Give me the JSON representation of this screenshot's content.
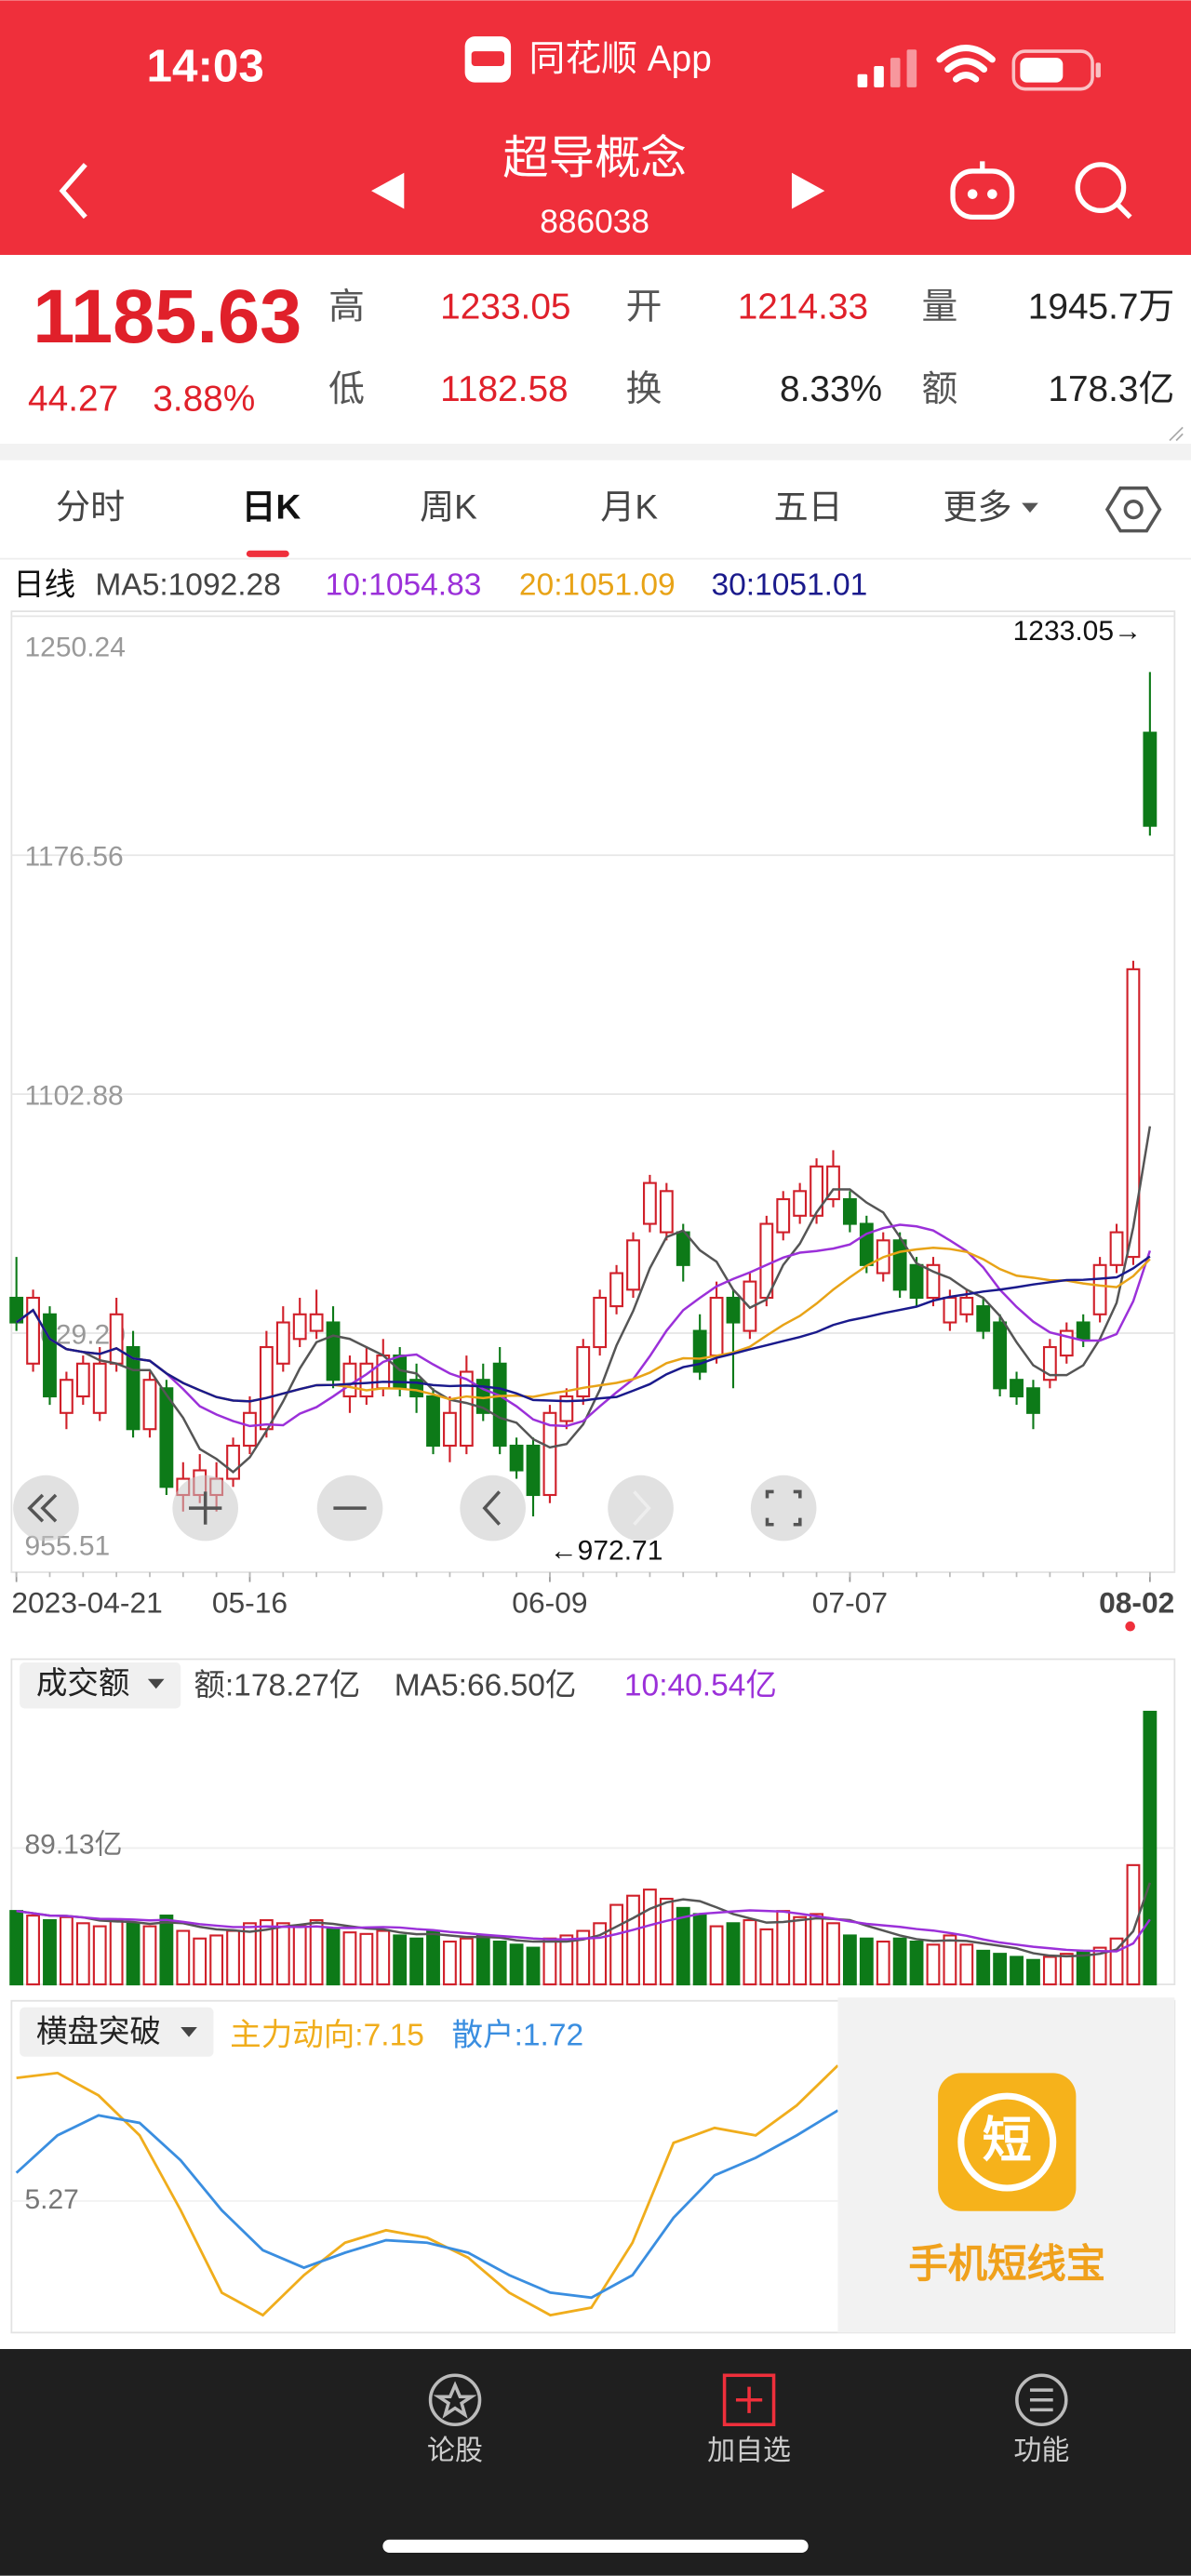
{
  "status": {
    "time": "14:03",
    "app": "同花顺 App"
  },
  "header": {
    "name": "超导概念",
    "code": "886038"
  },
  "quote": {
    "price": "1185.63",
    "change": "44.27",
    "pct": "3.88%",
    "high_label": "高",
    "high": "1233.05",
    "open_label": "开",
    "open": "1214.33",
    "volume_label": "量",
    "volume": "1945.7万",
    "low_label": "低",
    "low": "1182.58",
    "turnover_label": "换",
    "turnover": "8.33%",
    "amount_label": "额",
    "amount": "178.3亿"
  },
  "tabs": [
    "分时",
    "日K",
    "周K",
    "月K",
    "五日",
    "更多"
  ],
  "ma_legend": {
    "period": "日线",
    "items": [
      "MA5:1092.28",
      "10:1054.83",
      "20:1051.09",
      "30:1051.01"
    ],
    "colors": [
      "#444444",
      "#9b30d9",
      "#e8a317",
      "#1a1a8c"
    ]
  },
  "chart_data": [
    {
      "type": "candlestick",
      "ylim": [
        955.51,
        1250.24
      ],
      "yticks": [
        1250.24,
        1176.56,
        1102.88,
        {
          "value": 1029.2,
          "label": "1029.20"
        },
        955.51
      ],
      "high_note": "1233.05→",
      "low_note": "←972.71",
      "x_labels": [
        {
          "index": 0,
          "label": "2023-04-21"
        },
        {
          "index": 14,
          "label": "05-16"
        },
        {
          "index": 32,
          "label": "06-09"
        },
        {
          "index": 50,
          "label": "07-07"
        },
        {
          "index": 68,
          "label": "08-02"
        }
      ],
      "up_color": "#d0202a",
      "down_color": "#0d7a18",
      "ohlc": [
        [
          1040.1,
          1052.7,
          1029.9,
          1032.5
        ],
        [
          1019.8,
          1042.6,
          1017.3,
          1040.1
        ],
        [
          1035.0,
          1037.5,
          1007.1,
          1009.7
        ],
        [
          1004.6,
          1017.3,
          999.6,
          1014.8
        ],
        [
          1009.7,
          1022.3,
          1007.1,
          1019.8
        ],
        [
          1004.6,
          1024.9,
          1002.1,
          1019.8
        ],
        [
          1019.8,
          1040.1,
          1017.3,
          1035.0
        ],
        [
          1024.9,
          1029.9,
          997.0,
          999.6
        ],
        [
          999.6,
          1017.3,
          997.0,
          1014.8
        ],
        [
          1012.2,
          1014.8,
          979.3,
          981.8
        ],
        [
          979.3,
          989.4,
          974.2,
          984.3
        ],
        [
          979.3,
          991.9,
          976.8,
          986.9
        ],
        [
          979.3,
          989.4,
          974.2,
          984.3
        ],
        [
          984.3,
          997.0,
          981.8,
          994.5
        ],
        [
          994.5,
          1009.7,
          991.9,
          1004.6
        ],
        [
          999.6,
          1029.9,
          997.0,
          1024.9
        ],
        [
          1019.8,
          1037.5,
          1017.3,
          1032.5
        ],
        [
          1027.4,
          1040.1,
          1024.9,
          1035.0
        ],
        [
          1029.9,
          1042.6,
          1027.4,
          1035.0
        ],
        [
          1032.5,
          1037.5,
          1012.2,
          1014.8
        ],
        [
          1009.7,
          1022.3,
          1004.6,
          1019.8
        ],
        [
          1009.7,
          1024.9,
          1007.1,
          1019.8
        ],
        [
          1012.2,
          1027.4,
          1009.7,
          1022.3
        ],
        [
          1022.3,
          1024.9,
          1009.7,
          1012.2
        ],
        [
          1014.8,
          1019.8,
          1004.6,
          1009.7
        ],
        [
          1009.7,
          1012.2,
          991.9,
          994.5
        ],
        [
          994.5,
          1009.7,
          989.4,
          1004.6
        ],
        [
          994.5,
          1022.3,
          991.9,
          1017.3
        ],
        [
          1014.8,
          1019.8,
          1002.1,
          1004.6
        ],
        [
          1019.8,
          1024.9,
          991.9,
          994.5
        ],
        [
          994.5,
          997.0,
          984.3,
          986.9
        ],
        [
          994.5,
          997.0,
          972.71,
          979.3
        ],
        [
          979.3,
          1007.1,
          976.8,
          1004.6
        ],
        [
          1002.1,
          1012.2,
          999.6,
          1009.7
        ],
        [
          1009.7,
          1027.4,
          1007.1,
          1024.9
        ],
        [
          1024.9,
          1042.6,
          1022.3,
          1040.1
        ],
        [
          1037.5,
          1050.2,
          1035.0,
          1047.7
        ],
        [
          1042.6,
          1060.3,
          1040.1,
          1057.8
        ],
        [
          1062.9,
          1078.0,
          1060.3,
          1075.5
        ],
        [
          1060.3,
          1075.5,
          1057.8,
          1073.0
        ],
        [
          1060.3,
          1062.9,
          1045.1,
          1050.2
        ],
        [
          1029.9,
          1035.0,
          1014.8,
          1017.3
        ],
        [
          1022.3,
          1045.1,
          1019.8,
          1040.1
        ],
        [
          1040.1,
          1042.6,
          1012.2,
          1032.5
        ],
        [
          1029.9,
          1047.7,
          1027.4,
          1045.1
        ],
        [
          1040.1,
          1065.4,
          1037.5,
          1062.9
        ],
        [
          1060.3,
          1073.0,
          1057.8,
          1070.5
        ],
        [
          1065.4,
          1075.5,
          1062.9,
          1073.0
        ],
        [
          1065.4,
          1083.1,
          1062.9,
          1080.6
        ],
        [
          1070.5,
          1085.6,
          1068.0,
          1080.6
        ],
        [
          1070.5,
          1073.0,
          1060.3,
          1062.9
        ],
        [
          1062.9,
          1065.4,
          1047.7,
          1050.2
        ],
        [
          1047.7,
          1060.3,
          1045.1,
          1057.8
        ],
        [
          1057.8,
          1060.3,
          1040.1,
          1042.6
        ],
        [
          1050.2,
          1052.7,
          1037.5,
          1040.1
        ],
        [
          1040.1,
          1052.7,
          1037.5,
          1050.2
        ],
        [
          1032.5,
          1042.6,
          1029.9,
          1040.1
        ],
        [
          1035.0,
          1042.6,
          1032.5,
          1040.1
        ],
        [
          1037.5,
          1040.1,
          1027.4,
          1029.9
        ],
        [
          1032.5,
          1035.0,
          1009.7,
          1012.2
        ],
        [
          1014.8,
          1017.3,
          1007.1,
          1009.7
        ],
        [
          1012.2,
          1014.8,
          999.6,
          1004.6
        ],
        [
          1014.8,
          1027.4,
          1012.2,
          1024.9
        ],
        [
          1022.3,
          1032.5,
          1019.8,
          1029.9
        ],
        [
          1032.5,
          1035.0,
          1024.9,
          1027.4
        ],
        [
          1035.0,
          1052.7,
          1032.5,
          1050.2
        ],
        [
          1050.2,
          1062.9,
          1047.7,
          1060.3
        ],
        [
          1052.7,
          1144.0,
          1050.2,
          1141.4
        ],
        [
          1214.33,
          1233.05,
          1182.58,
          1185.63
        ]
      ]
    },
    {
      "type": "bar",
      "button": "成交额",
      "legend": [
        "额:178.27亿",
        "MA5:66.50亿",
        "10:40.54亿"
      ],
      "legend_colors": [
        "#444444",
        "#444444",
        "#9b30d9"
      ],
      "ylim": [
        0,
        178.27
      ],
      "yticks": [
        {
          "value": 89.13,
          "label": "89.13亿"
        }
      ],
      "values": [
        48,
        45,
        42,
        44,
        40,
        38,
        42,
        40,
        38,
        45,
        35,
        30,
        32,
        35,
        40,
        42,
        40,
        38,
        42,
        36,
        34,
        33,
        35,
        32,
        30,
        35,
        28,
        30,
        32,
        28,
        26,
        24,
        30,
        32,
        35,
        40,
        52,
        58,
        62,
        56,
        50,
        46,
        38,
        40,
        42,
        36,
        48,
        44,
        46,
        40,
        32,
        30,
        28,
        30,
        28,
        26,
        32,
        26,
        22,
        20,
        18,
        16,
        18,
        20,
        22,
        24,
        30,
        78,
        178.27
      ]
    },
    {
      "type": "line",
      "button": "横盘突破",
      "ylim": [
        0,
        12.5
      ],
      "yticks": [
        5.27
      ],
      "series": [
        {
          "name": "主力动向:7.15",
          "color": "#f0ad1c",
          "values": [
            10.2,
            10.4,
            9.5,
            7.9,
            4.9,
            1.6,
            0.7,
            2.3,
            3.6,
            4.1,
            3.8,
            3.0,
            1.6,
            0.7,
            1.0,
            3.6,
            7.6,
            8.2,
            7.9,
            9.1,
            10.7
          ]
        },
        {
          "name": "散户:1.72",
          "color": "#3a8ee0",
          "values": [
            6.4,
            7.9,
            8.7,
            8.4,
            6.9,
            4.9,
            3.3,
            2.6,
            3.2,
            3.7,
            3.6,
            3.2,
            2.3,
            1.6,
            1.4,
            2.3,
            4.6,
            6.3,
            7.0,
            7.9,
            8.9
          ]
        }
      ]
    }
  ],
  "ad": {
    "icon": "短",
    "text": "手机短线宝"
  },
  "nav": [
    "论股",
    "加自选",
    "功能"
  ]
}
